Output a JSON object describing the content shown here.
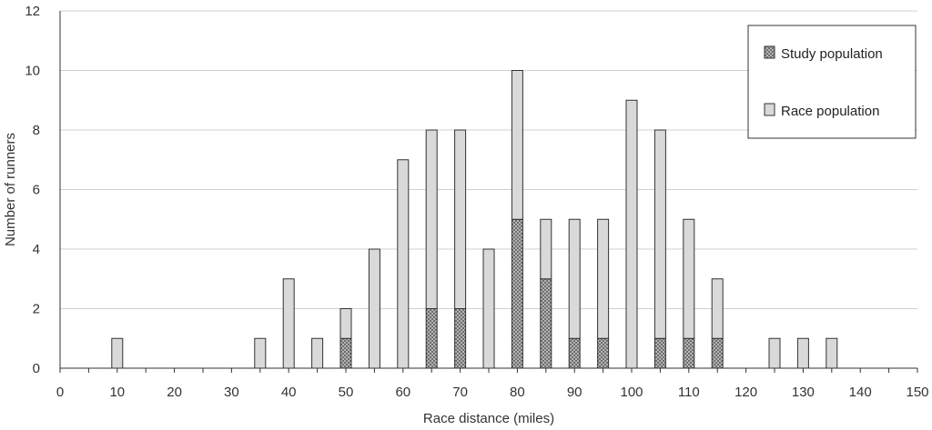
{
  "chart_data": {
    "type": "bar",
    "stacked": true,
    "title": "",
    "xlabel": "Race distance (miles)",
    "ylabel": "Number of runners",
    "xlim": [
      0,
      150
    ],
    "ylim": [
      0,
      12
    ],
    "x_ticks": [
      0,
      10,
      20,
      30,
      40,
      50,
      60,
      70,
      80,
      90,
      100,
      110,
      120,
      130,
      140,
      150
    ],
    "y_ticks": [
      0,
      2,
      4,
      6,
      8,
      10,
      12
    ],
    "grid": "horizontal",
    "legend_position": "top-right",
    "x": [
      10,
      35,
      40,
      45,
      50,
      55,
      60,
      65,
      70,
      75,
      80,
      85,
      90,
      95,
      100,
      105,
      110,
      115,
      125,
      130,
      135
    ],
    "series": [
      {
        "name": "Study population",
        "color": "#8c8c8c",
        "pattern": "dotted",
        "values": [
          0,
          0,
          0,
          0,
          1,
          0,
          0,
          2,
          2,
          0,
          5,
          3,
          1,
          1,
          0,
          1,
          1,
          1,
          0,
          0,
          0
        ]
      },
      {
        "name": "Race population",
        "color": "#d9d9d9",
        "pattern": "solid",
        "values": [
          1,
          1,
          3,
          1,
          1,
          4,
          7,
          6,
          6,
          4,
          5,
          2,
          4,
          4,
          9,
          7,
          4,
          2,
          1,
          1,
          1
        ]
      }
    ],
    "totals": [
      1,
      1,
      3,
      1,
      2,
      4,
      7,
      8,
      8,
      4,
      10,
      5,
      5,
      5,
      9,
      8,
      5,
      3,
      1,
      1,
      1
    ]
  }
}
